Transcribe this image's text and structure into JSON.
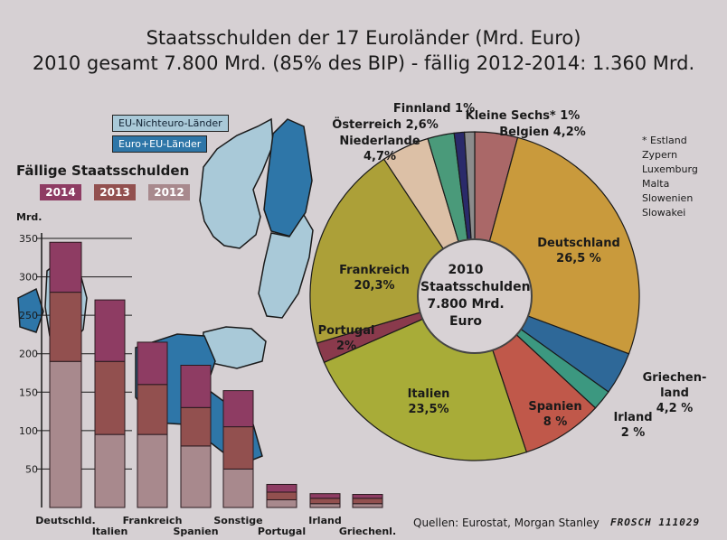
{
  "title_line1": "Staatsschulden der 17 Euroländer (Mrd. Euro)",
  "title_line2": "2010 gesamt 7.800 Mrd. (85% des BIP) - fällig 2012-2014: 1.360 Mrd.",
  "legend": {
    "non_euro": "EU-Nichteuro-Länder",
    "euro": "Euro+EU-Länder",
    "colors": {
      "non_euro": "#a9c9d8",
      "euro": "#2e76a8"
    }
  },
  "bar_section": {
    "heading": "Fällige Staatsschulden",
    "years": [
      "2014",
      "2013",
      "2012"
    ],
    "unit": "Mrd."
  },
  "pie_center": [
    "2010",
    "Staatsschulden",
    "7.800 Mrd.",
    "Euro"
  ],
  "footnote": [
    "* Estland",
    "Zypern",
    "Luxemburg",
    "Malta",
    "Slowenien",
    "Slowakei"
  ],
  "source": "Quellen: Eurostat, Morgan Stanley",
  "signature": "FROSCH 111029",
  "chart_data": [
    {
      "type": "bar",
      "stacked": true,
      "ylim": [
        0,
        350
      ],
      "yticks": [
        50,
        100,
        150,
        200,
        250,
        300,
        350
      ],
      "grid": true,
      "categories": [
        "Deutschld.",
        "Italien",
        "Frankreich",
        "Spanien",
        "Sonstige",
        "Portugal",
        "Irland",
        "Griechenl."
      ],
      "series": [
        {
          "name": "2012",
          "color": "#a8898d",
          "values": [
            190,
            95,
            95,
            80,
            50,
            10,
            5,
            5
          ]
        },
        {
          "name": "2013",
          "color": "#92504f",
          "values": [
            90,
            95,
            65,
            50,
            55,
            10,
            7,
            7
          ]
        },
        {
          "name": "2014",
          "color": "#8e3c63",
          "values": [
            65,
            80,
            55,
            55,
            47,
            10,
            6,
            5
          ]
        }
      ]
    },
    {
      "type": "pie",
      "slices": [
        {
          "label": "Belgien 4,2%",
          "value": 4.2,
          "color": "#aa6868"
        },
        {
          "label": "Deutschland 26,5 %",
          "value": 26.5,
          "color": "#c99a3c"
        },
        {
          "label": "Griechen-land 4,2 %",
          "value": 4.2,
          "color": "#2e6898"
        },
        {
          "label": "Irland 2 %",
          "value": 2,
          "color": "#3c9880"
        },
        {
          "label": "Spanien 8 %",
          "value": 8,
          "color": "#c0584a"
        },
        {
          "label": "Italien 23,5%",
          "value": 23.5,
          "color": "#a8ac38"
        },
        {
          "label": "Portugal 2%",
          "value": 2,
          "color": "#8a3a4c"
        },
        {
          "label": "Frankreich 20,3%",
          "value": 20.3,
          "color": "#aca038"
        },
        {
          "label": "Niederlande 4,7%",
          "value": 4.7,
          "color": "#dcc0a6"
        },
        {
          "label": "Österreich 2,6%",
          "value": 2.6,
          "color": "#4a9a7a"
        },
        {
          "label": "Finnland 1%",
          "value": 1,
          "color": "#2a2a6a"
        },
        {
          "label": "Kleine Sechs* 1%",
          "value": 1,
          "color": "#8c8c8c"
        }
      ]
    }
  ]
}
